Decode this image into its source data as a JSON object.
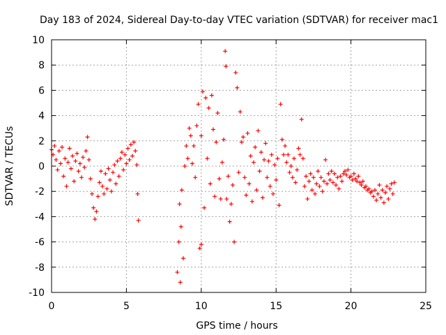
{
  "chart_data": {
    "type": "scatter",
    "title": "Day 183 of 2024, Sidereal Day-to-day VTEC variation (SDTVAR) for receiver mac1",
    "xlabel": "GPS time / hours",
    "ylabel": "SDTVAR / TECUs",
    "xlim": [
      0,
      25
    ],
    "ylim": [
      -10,
      10
    ],
    "xticks": [
      0,
      5,
      10,
      15,
      20,
      25
    ],
    "yticks": [
      -10,
      -8,
      -6,
      -4,
      -2,
      0,
      2,
      4,
      6,
      8,
      10
    ],
    "xtick_labels": [
      "0",
      "5",
      "10",
      "15",
      "20",
      "25"
    ],
    "ytick_labels": [
      "-10",
      "-8",
      "-6",
      "-4",
      "-2",
      "0",
      "2",
      "4",
      "6",
      "8",
      "10"
    ],
    "grid": true,
    "marker": "+",
    "color": "#ff0000",
    "series": [
      {
        "name": "SDTVAR",
        "points": [
          [
            0.0,
            1.3
          ],
          [
            0.1,
            0.9
          ],
          [
            0.2,
            1.6
          ],
          [
            0.3,
            0.5
          ],
          [
            0.4,
            -0.3
          ],
          [
            0.5,
            1.2
          ],
          [
            0.6,
            0.2
          ],
          [
            0.7,
            1.5
          ],
          [
            0.8,
            -0.8
          ],
          [
            0.9,
            0.6
          ],
          [
            1.0,
            -1.6
          ],
          [
            1.1,
            0.3
          ],
          [
            1.2,
            1.4
          ],
          [
            1.3,
            -0.2
          ],
          [
            1.4,
            0.8
          ],
          [
            1.5,
            -1.2
          ],
          [
            1.6,
            0.4
          ],
          [
            1.7,
            1.0
          ],
          [
            1.8,
            -0.4
          ],
          [
            1.9,
            0.2
          ],
          [
            2.0,
            -0.9
          ],
          [
            2.1,
            0.7
          ],
          [
            2.2,
            -0.1
          ],
          [
            2.3,
            1.2
          ],
          [
            2.4,
            2.3
          ],
          [
            2.5,
            0.5
          ],
          [
            2.6,
            -1.0
          ],
          [
            2.7,
            -2.2
          ],
          [
            2.8,
            -3.3
          ],
          [
            2.9,
            -4.2
          ],
          [
            3.0,
            -3.6
          ],
          [
            3.1,
            -2.4
          ],
          [
            3.2,
            -1.3
          ],
          [
            3.3,
            -0.4
          ],
          [
            3.4,
            -1.6
          ],
          [
            3.5,
            -2.2
          ],
          [
            3.6,
            -0.6
          ],
          [
            3.7,
            -1.8
          ],
          [
            3.8,
            -0.2
          ],
          [
            3.9,
            -1.1
          ],
          [
            4.0,
            -2.0
          ],
          [
            4.1,
            -0.5
          ],
          [
            4.2,
            0.1
          ],
          [
            4.3,
            -1.4
          ],
          [
            4.4,
            0.4
          ],
          [
            4.5,
            -0.8
          ],
          [
            4.6,
            0.6
          ],
          [
            4.7,
            1.1
          ],
          [
            4.8,
            -0.3
          ],
          [
            4.9,
            0.9
          ],
          [
            5.0,
            0.2
          ],
          [
            5.1,
            1.4
          ],
          [
            5.2,
            0.5
          ],
          [
            5.3,
            1.7
          ],
          [
            5.4,
            0.8
          ],
          [
            5.5,
            1.9
          ],
          [
            5.6,
            1.2
          ],
          [
            5.7,
            0.1
          ],
          [
            5.75,
            -2.2
          ],
          [
            5.8,
            -4.3
          ],
          [
            8.4,
            -8.4
          ],
          [
            8.5,
            -6.0
          ],
          [
            8.55,
            -3.0
          ],
          [
            8.6,
            -9.2
          ],
          [
            8.65,
            -4.8
          ],
          [
            8.7,
            -1.9
          ],
          [
            8.8,
            -7.3
          ],
          [
            8.9,
            0.0
          ],
          [
            9.0,
            1.6
          ],
          [
            9.1,
            0.6
          ],
          [
            9.2,
            3.0
          ],
          [
            9.3,
            2.4
          ],
          [
            9.4,
            0.2
          ],
          [
            9.5,
            1.6
          ],
          [
            9.6,
            -0.9
          ],
          [
            9.7,
            3.2
          ],
          [
            9.8,
            4.9
          ],
          [
            9.9,
            -6.5
          ],
          [
            10.0,
            -6.2
          ],
          [
            10.0,
            2.4
          ],
          [
            10.1,
            5.9
          ],
          [
            10.2,
            -3.3
          ],
          [
            10.3,
            5.4
          ],
          [
            10.4,
            0.6
          ],
          [
            10.5,
            4.6
          ],
          [
            10.6,
            -1.4
          ],
          [
            10.7,
            5.6
          ],
          [
            10.8,
            2.9
          ],
          [
            10.9,
            -2.4
          ],
          [
            11.0,
            1.9
          ],
          [
            11.1,
            4.2
          ],
          [
            11.2,
            -1.0
          ],
          [
            11.3,
            -2.6
          ],
          [
            11.4,
            0.3
          ],
          [
            11.5,
            2.1
          ],
          [
            11.6,
            9.1
          ],
          [
            11.65,
            7.9
          ],
          [
            11.7,
            -2.6
          ],
          [
            11.8,
            -0.8
          ],
          [
            11.9,
            -4.4
          ],
          [
            12.0,
            -3.0
          ],
          [
            12.1,
            -1.5
          ],
          [
            12.2,
            -6.0
          ],
          [
            12.3,
            7.4
          ],
          [
            12.4,
            6.2
          ],
          [
            12.5,
            -0.5
          ],
          [
            12.6,
            4.3
          ],
          [
            12.7,
            1.9
          ],
          [
            12.8,
            2.3
          ],
          [
            12.9,
            -0.9
          ],
          [
            13.0,
            -2.3
          ],
          [
            13.1,
            2.6
          ],
          [
            13.2,
            -1.4
          ],
          [
            13.3,
            0.8
          ],
          [
            13.4,
            -2.8
          ],
          [
            13.5,
            0.3
          ],
          [
            13.6,
            1.5
          ],
          [
            13.7,
            -1.9
          ],
          [
            13.8,
            2.8
          ],
          [
            13.9,
            -0.4
          ],
          [
            14.0,
            1.1
          ],
          [
            14.1,
            -2.5
          ],
          [
            14.2,
            0.5
          ],
          [
            14.3,
            1.8
          ],
          [
            14.4,
            -0.9
          ],
          [
            14.5,
            0.4
          ],
          [
            14.6,
            -1.6
          ],
          [
            14.7,
            0.9
          ],
          [
            14.8,
            -2.2
          ],
          [
            14.9,
            0.1
          ],
          [
            15.0,
            -1.1
          ],
          [
            15.1,
            0.6
          ],
          [
            15.2,
            -3.1
          ],
          [
            15.3,
            4.9
          ],
          [
            15.4,
            2.1
          ],
          [
            15.5,
            0.9
          ],
          [
            15.6,
            1.6
          ],
          [
            15.7,
            0.3
          ],
          [
            15.8,
            0.9
          ],
          [
            15.9,
            -0.5
          ],
          [
            16.0,
            0.0
          ],
          [
            16.1,
            -0.9
          ],
          [
            16.2,
            0.6
          ],
          [
            16.3,
            -1.3
          ],
          [
            16.4,
            -0.3
          ],
          [
            16.5,
            1.4
          ],
          [
            16.6,
            0.9
          ],
          [
            16.7,
            3.7
          ],
          [
            16.8,
            0.6
          ],
          [
            16.9,
            -1.6
          ],
          [
            17.0,
            -0.8
          ],
          [
            17.1,
            -2.6
          ],
          [
            17.2,
            -1.2
          ],
          [
            17.3,
            -0.6
          ],
          [
            17.4,
            -1.9
          ],
          [
            17.5,
            -0.9
          ],
          [
            17.6,
            -2.2
          ],
          [
            17.7,
            -1.4
          ],
          [
            17.8,
            -0.4
          ],
          [
            17.9,
            -1.6
          ],
          [
            18.0,
            -0.9
          ],
          [
            18.1,
            -2.0
          ],
          [
            18.2,
            -1.2
          ],
          [
            18.3,
            0.5
          ],
          [
            18.4,
            -1.4
          ],
          [
            18.5,
            -0.6
          ],
          [
            18.6,
            -1.1
          ],
          [
            18.7,
            -0.4
          ],
          [
            18.8,
            -1.3
          ],
          [
            18.9,
            -0.6
          ],
          [
            19.0,
            -1.5
          ],
          [
            19.1,
            -0.9
          ],
          [
            19.2,
            -1.8
          ],
          [
            19.3,
            -0.8
          ],
          [
            19.4,
            -1.2
          ],
          [
            19.5,
            -0.6
          ],
          [
            19.6,
            -0.4
          ],
          [
            19.7,
            -0.7
          ],
          [
            19.8,
            -0.3
          ],
          [
            19.9,
            -0.9
          ],
          [
            20.0,
            -0.8
          ],
          [
            20.1,
            -1.1
          ],
          [
            20.2,
            -0.6
          ],
          [
            20.3,
            -1.0
          ],
          [
            20.4,
            -1.2
          ],
          [
            20.5,
            -0.8
          ],
          [
            20.6,
            -1.3
          ],
          [
            20.7,
            -1.5
          ],
          [
            20.8,
            -1.2
          ],
          [
            20.9,
            -1.7
          ],
          [
            21.0,
            -1.6
          ],
          [
            21.1,
            -1.9
          ],
          [
            21.2,
            -1.8
          ],
          [
            21.3,
            -2.1
          ],
          [
            21.4,
            -2.0
          ],
          [
            21.5,
            -2.4
          ],
          [
            21.6,
            -1.9
          ],
          [
            21.7,
            -2.7
          ],
          [
            21.8,
            -2.2
          ],
          [
            21.9,
            -1.5
          ],
          [
            22.0,
            -2.5
          ],
          [
            22.1,
            -1.9
          ],
          [
            22.2,
            -2.9
          ],
          [
            22.3,
            -2.1
          ],
          [
            22.4,
            -1.6
          ],
          [
            22.5,
            -2.6
          ],
          [
            22.6,
            -1.8
          ],
          [
            22.7,
            -1.4
          ],
          [
            22.8,
            -2.2
          ],
          [
            22.9,
            -1.3
          ]
        ]
      }
    ]
  }
}
